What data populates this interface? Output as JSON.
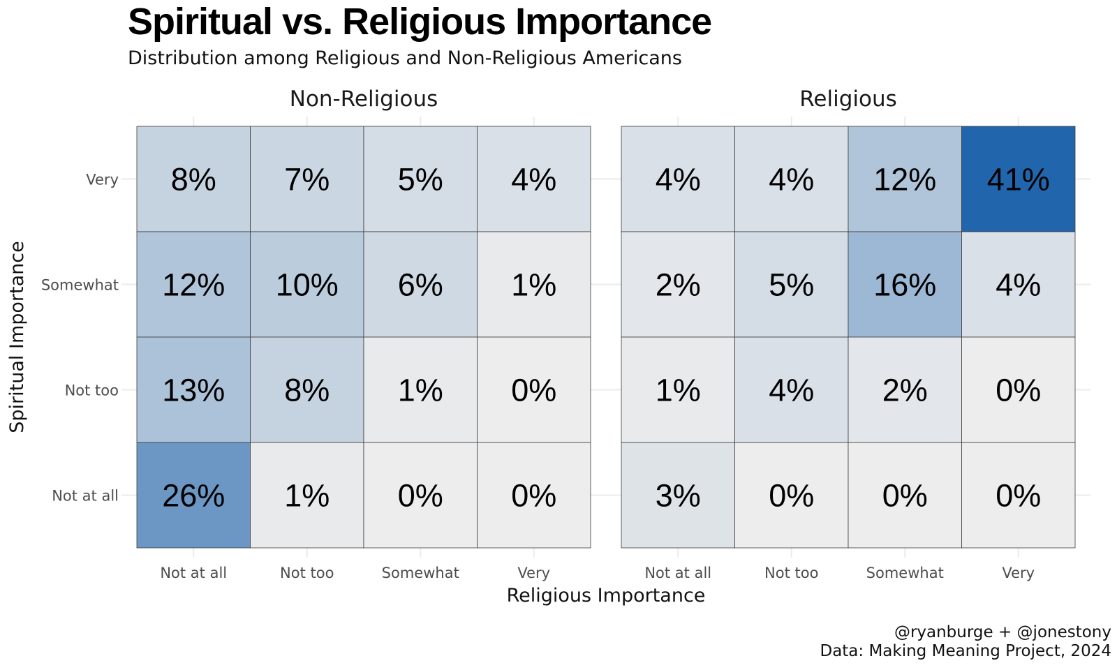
{
  "chart_data": {
    "type": "heatmap",
    "title": "Spiritual vs. Religious Importance",
    "subtitle": "Distribution among Religious and Non-Religious Americans",
    "xlabel": "Religious Importance",
    "ylabel": "Spiritual Importance",
    "x_categories": [
      "Not at all",
      "Not too",
      "Somewhat",
      "Very"
    ],
    "y_categories": [
      "Very",
      "Somewhat",
      "Not too",
      "Not at all"
    ],
    "fill_scale": {
      "low": "#ededed",
      "high": "#2166ac",
      "max": 41
    },
    "facets": [
      {
        "name": "Non-Religious",
        "values": [
          [
            8,
            7,
            5,
            4
          ],
          [
            12,
            10,
            6,
            1
          ],
          [
            13,
            8,
            1,
            0
          ],
          [
            26,
            1,
            0,
            0
          ]
        ],
        "labels": [
          [
            "8%",
            "7%",
            "5%",
            "4%"
          ],
          [
            "12%",
            "10%",
            "6%",
            "1%"
          ],
          [
            "13%",
            "8%",
            "1%",
            "0%"
          ],
          [
            "26%",
            "1%",
            "0%",
            "0%"
          ]
        ]
      },
      {
        "name": "Religious",
        "values": [
          [
            4,
            4,
            12,
            41
          ],
          [
            2,
            5,
            16,
            4
          ],
          [
            1,
            4,
            2,
            0
          ],
          [
            3,
            0,
            0,
            0
          ]
        ],
        "labels": [
          [
            "4%",
            "4%",
            "12%",
            "41%"
          ],
          [
            "2%",
            "5%",
            "16%",
            "4%"
          ],
          [
            "1%",
            "4%",
            "2%",
            "0%"
          ],
          [
            "3%",
            "0%",
            "0%",
            "0%"
          ]
        ]
      }
    ]
  },
  "caption": {
    "line1": "@ryanburge + @jonestony",
    "line2": "Data: Making Meaning Project, 2024"
  }
}
